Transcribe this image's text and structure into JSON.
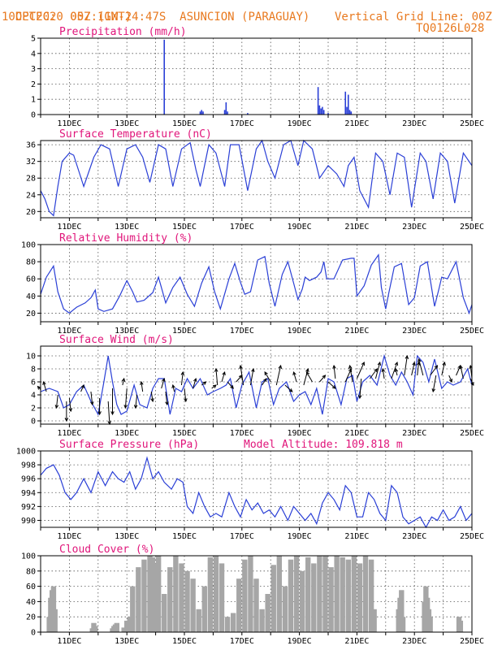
{
  "header": {
    "source": "CPTEC:",
    "coords": "057:11W-24:47S",
    "station": "ASUNCION (PARAGUAY)",
    "date": "10DEC2020 00Z (GMT)",
    "grid_note": "Vertical Grid Line: 00Z",
    "code": "TQ0126L028"
  },
  "colors": {
    "header": "#e8791f",
    "title": "#e0157a",
    "line": "#2a3fd6",
    "bar": "#2a3fd6",
    "cloud": "#a6a6a6",
    "grid": "#555555"
  },
  "x_axis": {
    "ticks": [
      "11DEC",
      "13DEC",
      "15DEC",
      "17DEC",
      "19DEC",
      "21DEC",
      "23DEC",
      "25DEC"
    ],
    "tick_days": [
      11,
      13,
      15,
      17,
      19,
      21,
      23,
      25
    ],
    "xlim": [
      10,
      25
    ]
  },
  "chart_data": [
    {
      "type": "bar",
      "title": "Precipitation (mm/h)",
      "ylim": [
        0,
        5
      ],
      "yticks": [
        0,
        1,
        2,
        3,
        4,
        5
      ],
      "x": [
        14.3,
        15.55,
        15.6,
        15.65,
        16.4,
        16.45,
        16.5,
        17.2,
        19.65,
        19.7,
        19.75,
        19.8,
        19.85,
        20.0,
        20.6,
        20.65,
        20.7,
        20.75,
        20.8
      ],
      "y": [
        4.9,
        0.2,
        0.3,
        0.2,
        0.3,
        0.8,
        0.2,
        0.1,
        1.8,
        0.6,
        0.4,
        0.5,
        0.3,
        0.1,
        1.5,
        0.5,
        1.3,
        0.3,
        0.2
      ]
    },
    {
      "type": "line",
      "title": "Surface Temperature (nC)",
      "ylim": [
        18.5,
        37
      ],
      "yticks": [
        20,
        24,
        28,
        32,
        36
      ],
      "x": [
        10.0,
        10.15,
        10.3,
        10.45,
        10.6,
        10.75,
        11.0,
        11.15,
        11.5,
        11.85,
        12.1,
        12.4,
        12.7,
        13.0,
        13.3,
        13.55,
        13.8,
        14.1,
        14.35,
        14.6,
        14.9,
        15.2,
        15.4,
        15.55,
        15.85,
        16.1,
        16.4,
        16.6,
        16.9,
        17.2,
        17.5,
        17.7,
        17.9,
        18.15,
        18.45,
        18.7,
        18.95,
        19.15,
        19.45,
        19.7,
        20.0,
        20.3,
        20.55,
        20.7,
        20.9,
        21.1,
        21.4,
        21.65,
        21.9,
        22.15,
        22.4,
        22.65,
        22.9,
        23.2,
        23.4,
        23.65,
        23.9,
        24.15,
        24.4,
        24.7,
        25.0
      ],
      "y": [
        25,
        23,
        20,
        19,
        26,
        32,
        34,
        33.5,
        26,
        33,
        36,
        35,
        26,
        35,
        36,
        33,
        27,
        36,
        35,
        26,
        35,
        36.5,
        30,
        26,
        36,
        34,
        26,
        36,
        36,
        25,
        35,
        37,
        32,
        28,
        36,
        37,
        31,
        37,
        35,
        28,
        31,
        29,
        26,
        31,
        33,
        25,
        21,
        34,
        32,
        24,
        34,
        33,
        21,
        34,
        32,
        23,
        34,
        32,
        22,
        34,
        31
      ]
    },
    {
      "type": "line",
      "title": "Relative Humidity (%)",
      "ylim": [
        10,
        100
      ],
      "yticks": [
        20,
        40,
        60,
        80,
        100
      ],
      "x": [
        10.0,
        10.2,
        10.45,
        10.6,
        10.8,
        11.0,
        11.25,
        11.55,
        11.75,
        11.9,
        12.0,
        12.2,
        12.5,
        12.75,
        13.0,
        13.2,
        13.35,
        13.6,
        13.9,
        14.1,
        14.35,
        14.6,
        14.85,
        15.1,
        15.35,
        15.6,
        15.85,
        16.05,
        16.25,
        16.55,
        16.75,
        16.95,
        17.1,
        17.3,
        17.55,
        17.8,
        17.95,
        18.15,
        18.4,
        18.6,
        18.8,
        18.95,
        19.1,
        19.2,
        19.35,
        19.6,
        19.75,
        19.85,
        19.95,
        20.05,
        20.2,
        20.5,
        20.8,
        20.9,
        21.0,
        21.25,
        21.5,
        21.75,
        21.85,
        22.0,
        22.1,
        22.3,
        22.55,
        22.8,
        23.0,
        23.2,
        23.45,
        23.7,
        23.85,
        23.95,
        24.15,
        24.45,
        24.7,
        24.9,
        25.0
      ],
      "y": [
        42,
        62,
        75,
        45,
        25,
        20,
        27,
        32,
        38,
        47,
        25,
        22,
        25,
        40,
        58,
        45,
        33,
        35,
        44,
        62,
        32,
        50,
        62,
        42,
        28,
        55,
        74,
        45,
        25,
        60,
        78,
        56,
        42,
        45,
        82,
        86,
        55,
        28,
        65,
        80,
        55,
        36,
        48,
        62,
        58,
        62,
        68,
        80,
        60,
        60,
        60,
        82,
        84,
        84,
        40,
        52,
        76,
        88,
        50,
        25,
        42,
        74,
        78,
        30,
        38,
        75,
        80,
        28,
        48,
        62,
        60,
        80,
        38,
        20,
        30
      ]
    },
    {
      "type": "line",
      "title": "Surface Wind (m/s)",
      "ylim": [
        -0.5,
        11.5
      ],
      "yticks": [
        0,
        2,
        4,
        6,
        8,
        10
      ],
      "x": [
        10.0,
        10.3,
        10.6,
        10.8,
        11.0,
        11.25,
        11.5,
        11.75,
        12.0,
        12.2,
        12.35,
        12.5,
        12.65,
        12.8,
        13.0,
        13.25,
        13.45,
        13.7,
        13.9,
        14.1,
        14.3,
        14.5,
        14.7,
        14.9,
        15.1,
        15.3,
        15.55,
        15.8,
        16.0,
        16.25,
        16.45,
        16.6,
        16.8,
        17.0,
        17.25,
        17.5,
        17.7,
        17.9,
        18.1,
        18.3,
        18.55,
        18.8,
        19.0,
        19.2,
        19.4,
        19.6,
        19.8,
        20.0,
        20.2,
        20.45,
        20.65,
        20.85,
        21.0,
        21.2,
        21.45,
        21.7,
        21.95,
        22.15,
        22.35,
        22.55,
        22.75,
        22.95,
        23.1,
        23.3,
        23.5,
        23.7,
        23.95,
        24.15,
        24.35,
        24.6,
        24.85,
        25.0
      ],
      "y": [
        4.5,
        5.0,
        4.5,
        2.0,
        2.5,
        4.5,
        5.5,
        3.0,
        1.0,
        6.0,
        10.0,
        6.0,
        2.5,
        1.0,
        1.5,
        5.5,
        2.5,
        2.0,
        5.0,
        6.5,
        6.5,
        1.0,
        5.0,
        4.5,
        6.5,
        5.0,
        6.5,
        4.0,
        4.5,
        5.0,
        5.5,
        6.5,
        2.0,
        5.5,
        7.5,
        2.0,
        6.0,
        6.5,
        2.5,
        5.0,
        6.0,
        3.0,
        4.0,
        4.5,
        2.5,
        5.0,
        1.0,
        6.5,
        6.0,
        2.5,
        6.5,
        7.0,
        3.0,
        6.0,
        7.0,
        5.5,
        10.0,
        7.0,
        5.5,
        7.5,
        6.0,
        4.0,
        10.0,
        9.0,
        6.0,
        9.5,
        5.0,
        6.0,
        5.5,
        6.0,
        8.0,
        5.5
      ],
      "arrows_x": [
        10.0,
        10.2,
        10.6,
        10.9,
        11.0,
        11.4,
        11.75,
        12.05,
        12.35,
        12.5,
        12.85,
        13.0,
        13.35,
        13.55,
        13.85,
        14.2,
        14.35,
        14.65,
        14.9,
        15.0,
        15.3,
        15.6,
        15.95,
        16.15,
        16.3,
        16.5,
        16.8,
        17.05,
        17.3,
        17.7,
        18.0,
        18.2,
        18.5,
        18.9,
        19.15,
        19.45,
        19.7,
        20.0,
        20.25,
        20.6,
        20.85,
        21.0,
        21.15,
        21.45,
        21.65,
        21.95,
        22.2,
        22.4,
        22.65,
        22.9,
        23.1,
        23.3,
        23.55,
        23.75,
        23.95,
        24.2,
        24.45,
        24.7,
        24.95,
        25.0
      ],
      "arrows_y": [
        4.8,
        4.5,
        4.0,
        3.0,
        3.5,
        4.5,
        4.5,
        3.5,
        3.0,
        5.0,
        5.5,
        5.0,
        4.0,
        4.5,
        4.5,
        5.0,
        4.5,
        4.5,
        5.5,
        5.0,
        5.0,
        5.5,
        5.0,
        5.5,
        6.0,
        6.0,
        6.0,
        5.5,
        5.5,
        5.5,
        6.0,
        5.5,
        5.5,
        6.0,
        5.5,
        6.0,
        6.0,
        6.0,
        6.5,
        6.0,
        6.0,
        6.5,
        6.5,
        6.5,
        6.5,
        6.5,
        6.5,
        7.0,
        7.0,
        7.0,
        7.0,
        7.0,
        7.0,
        7.0,
        7.0,
        7.0,
        7.0,
        6.5,
        6.5,
        6.5
      ],
      "arrows_dx": [
        -0.1,
        -0.1,
        -0.05,
        0.0,
        0.05,
        0.1,
        0.05,
        0.0,
        0.05,
        0.0,
        0.05,
        -0.05,
        -0.05,
        -0.05,
        0.05,
        0.1,
        0.05,
        -0.05,
        0.05,
        0.05,
        0.1,
        0.15,
        0.15,
        -0.05,
        0.1,
        0.2,
        0.2,
        -0.1,
        0.1,
        0.15,
        -0.2,
        0.15,
        0.25,
        -0.1,
        0.15,
        -0.2,
        0.2,
        0.25,
        -0.05,
        0.2,
        -0.1,
        0.25,
        -0.05,
        0.25,
        0.15,
        -0.05,
        0.2,
        -0.05,
        0.1,
        0.1,
        0.05,
        -0.15,
        0.25,
        -0.1,
        0.1,
        0.1,
        0.15,
        -0.1,
        0.1,
        -0.05
      ],
      "arrows_dy": [
        0.5,
        1.5,
        -2.0,
        -3.0,
        -2.0,
        1.0,
        -2.0,
        -2.5,
        -3.5,
        -4.0,
        1.0,
        -3.0,
        -2.0,
        1.5,
        -1.5,
        1.5,
        -2.0,
        1.0,
        2.0,
        -2.0,
        1.5,
        0.5,
        0.5,
        2.5,
        1.5,
        -1.0,
        1.0,
        3.0,
        2.5,
        1.0,
        1.5,
        3.0,
        -1.0,
        1.5,
        2.5,
        1.5,
        1.0,
        -1.0,
        2.0,
        2.0,
        2.5,
        2.5,
        -3.0,
        1.5,
        2.5,
        1.5,
        2.5,
        1.0,
        3.0,
        2.0,
        2.0,
        2.5,
        1.5,
        -2.5,
        2.0,
        -1.0,
        1.5,
        2.0,
        -1.0,
        2.0
      ]
    },
    {
      "type": "line",
      "title": "Surface Pressure (hPa)",
      "annotation": "Model Altitude: 109.818 m",
      "ylim": [
        989,
        1000
      ],
      "yticks": [
        990,
        992,
        994,
        996,
        998,
        1000
      ],
      "x": [
        10.0,
        10.2,
        10.45,
        10.65,
        10.85,
        11.05,
        11.25,
        11.5,
        11.75,
        12.0,
        12.25,
        12.5,
        12.7,
        12.9,
        13.1,
        13.3,
        13.5,
        13.7,
        13.9,
        14.1,
        14.3,
        14.55,
        14.75,
        14.95,
        15.1,
        15.3,
        15.5,
        15.7,
        15.9,
        16.1,
        16.3,
        16.55,
        16.75,
        16.95,
        17.15,
        17.35,
        17.55,
        17.75,
        17.95,
        18.15,
        18.35,
        18.6,
        18.8,
        19.0,
        19.2,
        19.4,
        19.6,
        19.8,
        20.0,
        20.2,
        20.4,
        20.6,
        20.8,
        21.0,
        21.2,
        21.4,
        21.6,
        21.8,
        22.0,
        22.2,
        22.4,
        22.6,
        22.8,
        23.0,
        23.2,
        23.4,
        23.6,
        23.8,
        24.0,
        24.2,
        24.4,
        24.6,
        24.8,
        25.0
      ],
      "y": [
        996.5,
        997.5,
        998,
        996.5,
        994,
        993,
        994,
        996,
        994,
        997,
        995,
        997,
        996,
        995.5,
        997,
        994.5,
        996,
        999,
        996,
        997,
        995.5,
        994.5,
        996,
        995.5,
        992,
        991,
        994,
        992,
        990.5,
        991,
        990.5,
        994,
        992,
        990.5,
        993,
        991.5,
        992.5,
        991,
        991.5,
        990.5,
        992,
        990,
        992,
        991,
        990,
        991,
        989.5,
        992.5,
        994,
        993,
        991.5,
        995,
        994,
        990.5,
        990.5,
        994,
        993,
        991,
        990,
        995,
        994,
        990.5,
        989.5,
        990,
        990.5,
        989,
        990.5,
        990,
        991.5,
        990,
        990.5,
        992,
        990,
        991
      ]
    },
    {
      "type": "bar",
      "title": "Cloud Cover (%)",
      "ylim": [
        0,
        100
      ],
      "yticks": [
        0,
        20,
        40,
        60,
        80,
        100
      ],
      "x": [
        10.3,
        10.35,
        10.4,
        10.45,
        10.5,
        11.8,
        11.85,
        11.9,
        12.5,
        12.55,
        12.6,
        12.65,
        12.9,
        13.0,
        13.05,
        13.1,
        13.2,
        13.4,
        13.6,
        13.8,
        13.9,
        14.0,
        14.1,
        14.3,
        14.5,
        14.7,
        14.9,
        15.1,
        15.3,
        15.5,
        15.7,
        15.9,
        16.1,
        16.3,
        16.5,
        16.7,
        16.9,
        17.1,
        17.3,
        17.5,
        17.7,
        17.9,
        18.1,
        18.3,
        18.5,
        18.7,
        18.9,
        19.1,
        19.3,
        19.5,
        19.7,
        19.9,
        20.1,
        20.3,
        20.5,
        20.7,
        20.9,
        21.1,
        21.3,
        21.5,
        21.6,
        22.45,
        22.5,
        22.55,
        22.6,
        23.35,
        23.4,
        23.45,
        23.5,
        23.55,
        24.55,
        24.6
      ],
      "y": [
        20,
        45,
        55,
        60,
        30,
        5,
        12,
        8,
        5,
        8,
        10,
        12,
        6,
        15,
        12,
        20,
        60,
        85,
        95,
        100,
        98,
        90,
        100,
        50,
        85,
        100,
        90,
        80,
        70,
        30,
        60,
        98,
        100,
        90,
        20,
        25,
        70,
        95,
        100,
        70,
        30,
        50,
        88,
        100,
        60,
        95,
        100,
        80,
        98,
        90,
        100,
        100,
        85,
        100,
        98,
        95,
        100,
        90,
        100,
        95,
        30,
        30,
        45,
        55,
        20,
        40,
        60,
        45,
        30,
        20,
        20,
        15
      ]
    }
  ]
}
